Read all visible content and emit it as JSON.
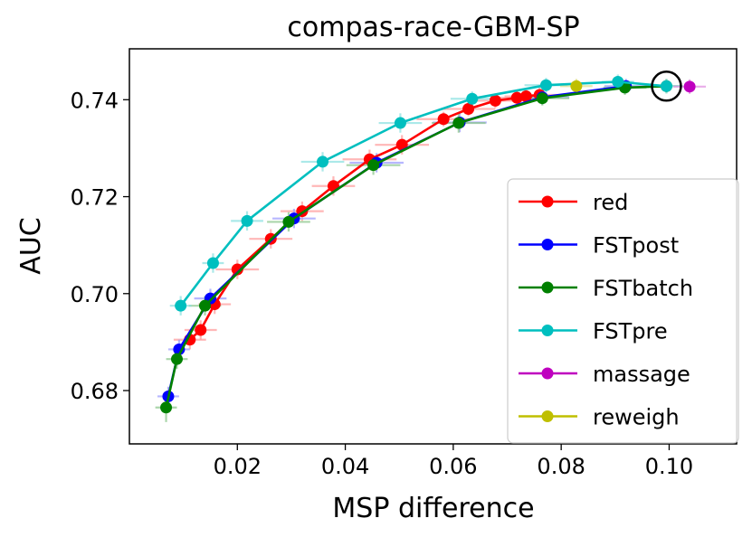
{
  "chart_data": {
    "type": "line",
    "title": "compas-race-GBM-SP",
    "xlabel": "MSP difference",
    "ylabel": "AUC",
    "xlim": [
      0.0,
      0.1125
    ],
    "ylim": [
      0.669,
      0.7505
    ],
    "xticks": [
      0.02,
      0.04,
      0.06,
      0.08,
      0.1
    ],
    "xtick_labels": [
      "0.02",
      "0.04",
      "0.06",
      "0.08",
      "0.10"
    ],
    "yticks": [
      0.68,
      0.7,
      0.72,
      0.74
    ],
    "ytick_labels": [
      "0.68",
      "0.70",
      "0.72",
      "0.74"
    ],
    "grid": false,
    "legend_position": "lower-right",
    "highlight": {
      "label": "circled point",
      "x": 0.0995,
      "y": 0.7428
    },
    "series": [
      {
        "name": "red",
        "color": "#ff0000",
        "errcolor": "#ff9999",
        "line": true,
        "x": [
          0.0112,
          0.0132,
          0.0158,
          0.02,
          0.0262,
          0.032,
          0.0378,
          0.0445,
          0.0505,
          0.0582,
          0.0628,
          0.0678,
          0.0718,
          0.0735,
          0.076
        ],
        "y": [
          0.6905,
          0.6925,
          0.6978,
          0.705,
          0.7113,
          0.717,
          0.7222,
          0.7277,
          0.7307,
          0.736,
          0.7381,
          0.7398,
          0.7404,
          0.7407,
          0.741
        ],
        "xerr": [
          0.003,
          0.003,
          0.003,
          0.004,
          0.004,
          0.004,
          0.004,
          0.005,
          0.005,
          0.005,
          0.005,
          0.005,
          0.004,
          0.004,
          0.004
        ],
        "yerr": [
          0.002,
          0.002,
          0.002,
          0.002,
          0.002,
          0.002,
          0.002,
          0.002,
          0.002,
          0.0015,
          0.0015,
          0.0015,
          0.0015,
          0.0015,
          0.0015
        ]
      },
      {
        "name": "FSTpost",
        "color": "#0000ff",
        "errcolor": "#9999ff",
        "line": true,
        "x": [
          0.0072,
          0.0092,
          0.015,
          0.0305,
          0.0458,
          0.0612,
          0.0765,
          0.092
        ],
        "y": [
          0.6788,
          0.6885,
          0.699,
          0.7155,
          0.727,
          0.7353,
          0.7405,
          0.7428
        ],
        "xerr": [
          0.002,
          0.002,
          0.003,
          0.004,
          0.005,
          0.005,
          0.005,
          0.004
        ],
        "yerr": [
          0.002,
          0.002,
          0.002,
          0.002,
          0.002,
          0.002,
          0.0015,
          0.0015
        ]
      },
      {
        "name": "FSTbatch",
        "color": "#008000",
        "errcolor": "#88c488",
        "line": true,
        "x": [
          0.0068,
          0.0088,
          0.014,
          0.0295,
          0.0452,
          0.061,
          0.0765,
          0.0918,
          0.0995
        ],
        "y": [
          0.6765,
          0.6865,
          0.6975,
          0.7148,
          0.7265,
          0.7352,
          0.7403,
          0.7425,
          0.7428
        ],
        "xerr": [
          0.002,
          0.002,
          0.003,
          0.004,
          0.005,
          0.005,
          0.005,
          0.004,
          0.003
        ],
        "yerr": [
          0.003,
          0.002,
          0.002,
          0.002,
          0.002,
          0.002,
          0.0015,
          0.0015,
          0.0015
        ]
      },
      {
        "name": "FSTpre",
        "color": "#00bfbf",
        "errcolor": "#88e0e0",
        "line": true,
        "x": [
          0.0095,
          0.0155,
          0.0218,
          0.0358,
          0.0502,
          0.0635,
          0.0772,
          0.0905,
          0.0995
        ],
        "y": [
          0.6975,
          0.7063,
          0.715,
          0.7272,
          0.7352,
          0.7402,
          0.743,
          0.7437,
          0.7428
        ],
        "xerr": [
          0.002,
          0.002,
          0.003,
          0.004,
          0.004,
          0.004,
          0.004,
          0.003,
          0.003
        ],
        "yerr": [
          0.002,
          0.002,
          0.002,
          0.002,
          0.002,
          0.0015,
          0.0015,
          0.0015,
          0.0015
        ]
      },
      {
        "name": "massage",
        "color": "#bf00bf",
        "errcolor": "#e08ae0",
        "line": false,
        "x": [
          0.1038
        ],
        "y": [
          0.7427
        ],
        "xerr": [
          0.003
        ],
        "yerr": [
          0.0015
        ]
      },
      {
        "name": "reweigh",
        "color": "#bfbf00",
        "errcolor": "#e0e08a",
        "line": false,
        "x": [
          0.0828
        ],
        "y": [
          0.7428
        ],
        "xerr": [
          0.003
        ],
        "yerr": [
          0.0015
        ]
      }
    ]
  }
}
